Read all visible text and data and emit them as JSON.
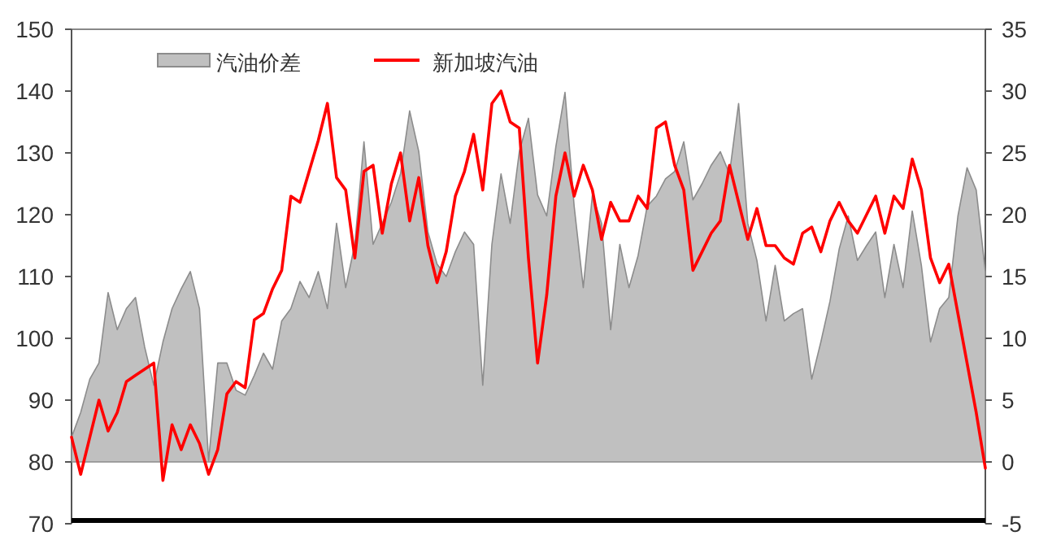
{
  "chart_data": {
    "type": "line",
    "categories": [
      null,
      null,
      null,
      null,
      null,
      null,
      null,
      null,
      null,
      null,
      null,
      null,
      null,
      null,
      null,
      null,
      null,
      null,
      null,
      null,
      null,
      null,
      null,
      null,
      null,
      null,
      null,
      null,
      null,
      null,
      null,
      null,
      null,
      null,
      null,
      null,
      null,
      null,
      null,
      null,
      null,
      null,
      null,
      null,
      null,
      null,
      null,
      null,
      null,
      null,
      null,
      null,
      null,
      null,
      null,
      null,
      null,
      null,
      null,
      null,
      null,
      null,
      null,
      null,
      null,
      null,
      null,
      null,
      null,
      null,
      null,
      null,
      null,
      null,
      null,
      null,
      null,
      null,
      null,
      null,
      null,
      null,
      null,
      null,
      null,
      null,
      null,
      null,
      null,
      null,
      null,
      null,
      null,
      null,
      null,
      null,
      null,
      null,
      null,
      null,
      null
    ],
    "ylim": [
      70,
      150
    ],
    "yticks": [
      70,
      80,
      90,
      100,
      110,
      120,
      130,
      140,
      150
    ],
    "y2lim": [
      -5,
      35
    ],
    "y2ticks": [
      -5,
      0,
      5,
      10,
      15,
      20,
      25,
      30,
      35
    ],
    "legend": "top left",
    "series": [
      {
        "name": "汽油价差",
        "type": "area",
        "axis": "y2",
        "color": "#c0c0c0",
        "values": [
          2,
          4,
          6.7,
          8,
          13.7,
          10.7,
          12.4,
          13.3,
          9.3,
          6.2,
          9.7,
          12.4,
          14,
          15.4,
          12.4,
          0.1,
          8,
          8,
          5.8,
          5.4,
          7,
          8.8,
          7.5,
          11.4,
          12.4,
          14.6,
          13.3,
          15.4,
          12.4,
          19.3,
          14.1,
          17.6,
          25.9,
          17.6,
          19.3,
          21,
          23.3,
          28.4,
          25.1,
          18.6,
          16,
          15,
          17,
          18.6,
          17.6,
          6.2,
          17.6,
          23.3,
          19.3,
          25.1,
          27.8,
          21.6,
          19.9,
          25.5,
          29.9,
          20.7,
          14.1,
          21.6,
          19.3,
          10.7,
          17.6,
          14.1,
          16.7,
          20.7,
          21.5,
          22.9,
          23.5,
          25.9,
          21.2,
          22.5,
          24,
          25.1,
          23.3,
          29,
          19.3,
          16.3,
          11.4,
          15.9,
          11.4,
          12,
          12.4,
          6.7,
          9.7,
          13,
          17.2,
          19.9,
          16.3,
          17.5,
          18.6,
          13.3,
          17.6,
          14.1,
          20.3,
          15.9,
          9.7,
          12.4,
          13.3,
          19.9,
          23.8,
          22,
          15.4
        ]
      },
      {
        "name": "新加坡汽油",
        "color": "#ff0000",
        "values": [
          84,
          78,
          84,
          90,
          85,
          88,
          93,
          94,
          95,
          96,
          77,
          86,
          82,
          86,
          83,
          78,
          82,
          91,
          93,
          92,
          103,
          104,
          108,
          111,
          123,
          122,
          127,
          132,
          138,
          126,
          124,
          113,
          127,
          128,
          117,
          125,
          130,
          119,
          126,
          115,
          109,
          114,
          123,
          127,
          133,
          124,
          138,
          140,
          135,
          134,
          113,
          96,
          107,
          123,
          130,
          123,
          128,
          124,
          116,
          122,
          119,
          119,
          123,
          121,
          134,
          135,
          128,
          124,
          111,
          114,
          117,
          119,
          128,
          122,
          116,
          121,
          115,
          115,
          113,
          112,
          117,
          118,
          114,
          119,
          122,
          119,
          117,
          120,
          123,
          117,
          123,
          121,
          129,
          124,
          113,
          109,
          112,
          104,
          96,
          88,
          79
        ]
      }
    ]
  }
}
